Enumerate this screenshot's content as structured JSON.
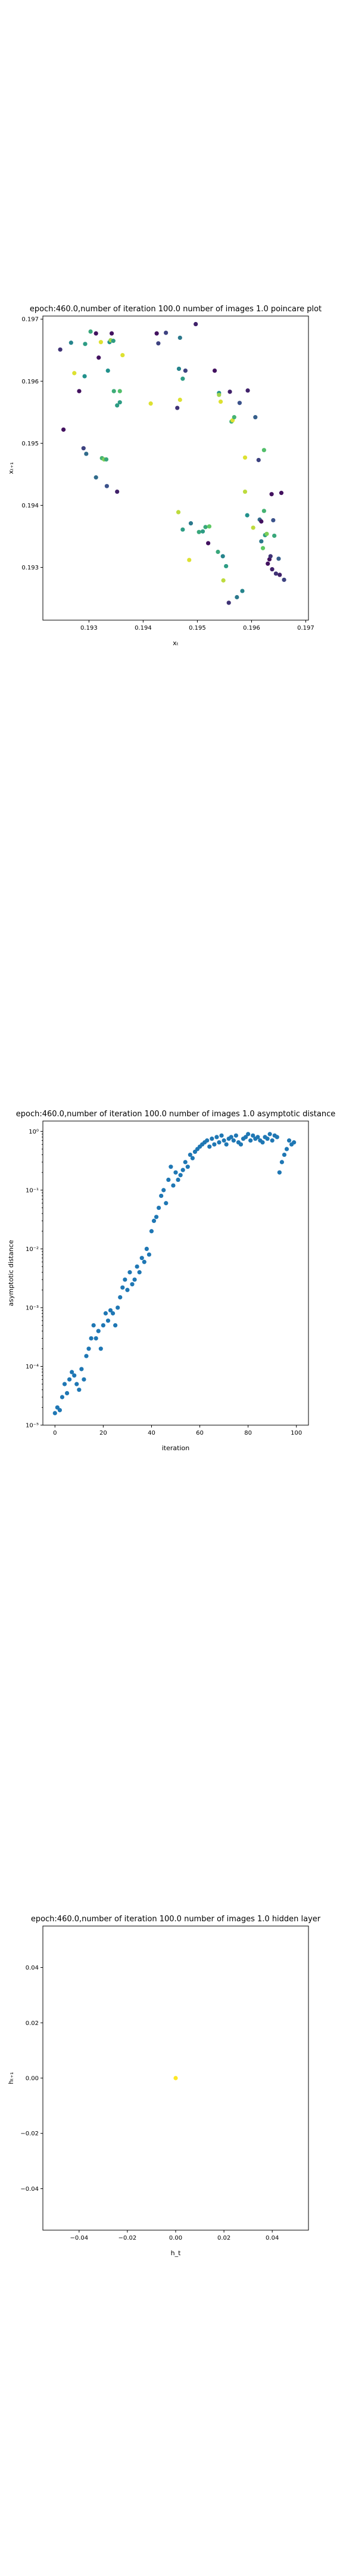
{
  "charts": [
    {
      "title": "epoch:460.0,number of iteration 100.0 number of images 1.0 poincare plot",
      "xlabel": "xₜ",
      "ylabel": "xₜ₊₁",
      "chart_data": {
        "type": "scatter",
        "title": "epoch:460.0,number of iteration 100.0 number of images 1.0 poincare plot",
        "xlabel": "xₜ",
        "ylabel": "xₜ₊₁",
        "xlim": [
          0.19215,
          0.19705
        ],
        "ylim": [
          0.19215,
          0.19705
        ],
        "xticks": [
          0.193,
          0.194,
          0.195,
          0.196,
          0.197
        ],
        "yticks": [
          0.193,
          0.194,
          0.195,
          0.196,
          0.197
        ],
        "xtick_labels": [
          "0.193",
          "0.194",
          "0.195",
          "0.196",
          "0.197"
        ],
        "ytick_labels": [
          "0.193",
          "0.194",
          "0.195",
          "0.196",
          "0.197"
        ],
        "xscale": "linear",
        "yscale": "linear",
        "grid": false,
        "colormap": "viridis",
        "points": [
          {
            "x": 0.19247,
            "y": 0.19651,
            "c": 0.15
          },
          {
            "x": 0.19253,
            "y": 0.19522,
            "c": 0.05
          },
          {
            "x": 0.19267,
            "y": 0.19662,
            "c": 0.45
          },
          {
            "x": 0.19273,
            "y": 0.19613,
            "c": 0.95
          },
          {
            "x": 0.19282,
            "y": 0.19584,
            "c": 0.05
          },
          {
            "x": 0.1929,
            "y": 0.19492,
            "c": 0.2
          },
          {
            "x": 0.19292,
            "y": 0.19608,
            "c": 0.5
          },
          {
            "x": 0.19293,
            "y": 0.1966,
            "c": 0.55
          },
          {
            "x": 0.19295,
            "y": 0.19483,
            "c": 0.35
          },
          {
            "x": 0.19303,
            "y": 0.1968,
            "c": 0.6
          },
          {
            "x": 0.19313,
            "y": 0.19677,
            "c": 0.05
          },
          {
            "x": 0.19313,
            "y": 0.19445,
            "c": 0.35
          },
          {
            "x": 0.19318,
            "y": 0.19638,
            "c": 0.05
          },
          {
            "x": 0.19322,
            "y": 0.19663,
            "c": 0.95
          },
          {
            "x": 0.19324,
            "y": 0.19476,
            "c": 0.65
          },
          {
            "x": 0.19328,
            "y": 0.19474,
            "c": 0.8
          },
          {
            "x": 0.19332,
            "y": 0.19474,
            "c": 0.6
          },
          {
            "x": 0.19333,
            "y": 0.19431,
            "c": 0.25
          },
          {
            "x": 0.19335,
            "y": 0.19617,
            "c": 0.5
          },
          {
            "x": 0.19338,
            "y": 0.19663,
            "c": 0.5
          },
          {
            "x": 0.1934,
            "y": 0.19666,
            "c": 0.85
          },
          {
            "x": 0.19342,
            "y": 0.19677,
            "c": 0.05
          },
          {
            "x": 0.19345,
            "y": 0.19665,
            "c": 0.55
          },
          {
            "x": 0.19346,
            "y": 0.19584,
            "c": 0.62
          },
          {
            "x": 0.19352,
            "y": 0.19561,
            "c": 0.55
          },
          {
            "x": 0.19352,
            "y": 0.19422,
            "c": 0.1
          },
          {
            "x": 0.19357,
            "y": 0.19584,
            "c": 0.7
          },
          {
            "x": 0.19357,
            "y": 0.19566,
            "c": 0.55
          },
          {
            "x": 0.19362,
            "y": 0.19642,
            "c": 0.95
          },
          {
            "x": 0.19414,
            "y": 0.19564,
            "c": 0.95
          },
          {
            "x": 0.19425,
            "y": 0.19677,
            "c": 0.05
          },
          {
            "x": 0.19428,
            "y": 0.19661,
            "c": 0.2
          },
          {
            "x": 0.19442,
            "y": 0.19678,
            "c": 0.2
          },
          {
            "x": 0.19463,
            "y": 0.19557,
            "c": 0.15
          },
          {
            "x": 0.19465,
            "y": 0.19389,
            "c": 0.9
          },
          {
            "x": 0.19466,
            "y": 0.1962,
            "c": 0.45
          },
          {
            "x": 0.19468,
            "y": 0.1967,
            "c": 0.4
          },
          {
            "x": 0.19468,
            "y": 0.1957,
            "c": 0.95
          },
          {
            "x": 0.19473,
            "y": 0.19604,
            "c": 0.55
          },
          {
            "x": 0.19473,
            "y": 0.19361,
            "c": 0.55
          },
          {
            "x": 0.19478,
            "y": 0.19617,
            "c": 0.2
          },
          {
            "x": 0.19485,
            "y": 0.19312,
            "c": 0.95
          },
          {
            "x": 0.19488,
            "y": 0.19371,
            "c": 0.4
          },
          {
            "x": 0.19497,
            "y": 0.19692,
            "c": 0.1
          },
          {
            "x": 0.19503,
            "y": 0.19357,
            "c": 0.6
          },
          {
            "x": 0.1951,
            "y": 0.19358,
            "c": 0.55
          },
          {
            "x": 0.19515,
            "y": 0.19365,
            "c": 0.6
          },
          {
            "x": 0.1952,
            "y": 0.19339,
            "c": 0.05
          },
          {
            "x": 0.19522,
            "y": 0.19366,
            "c": 0.75
          },
          {
            "x": 0.19532,
            "y": 0.19617,
            "c": 0.05
          },
          {
            "x": 0.19538,
            "y": 0.19325,
            "c": 0.6
          },
          {
            "x": 0.1954,
            "y": 0.19581,
            "c": 0.5
          },
          {
            "x": 0.1954,
            "y": 0.19578,
            "c": 0.85
          },
          {
            "x": 0.19543,
            "y": 0.19567,
            "c": 0.95
          },
          {
            "x": 0.19547,
            "y": 0.19318,
            "c": 0.45
          },
          {
            "x": 0.19548,
            "y": 0.19279,
            "c": 0.9
          },
          {
            "x": 0.19553,
            "y": 0.19302,
            "c": 0.55
          },
          {
            "x": 0.19558,
            "y": 0.19243,
            "c": 0.15
          },
          {
            "x": 0.1956,
            "y": 0.19583,
            "c": 0.1
          },
          {
            "x": 0.19563,
            "y": 0.19535,
            "c": 0.65
          },
          {
            "x": 0.19565,
            "y": 0.19537,
            "c": 0.95
          },
          {
            "x": 0.19568,
            "y": 0.19542,
            "c": 0.65
          },
          {
            "x": 0.19573,
            "y": 0.19252,
            "c": 0.4
          },
          {
            "x": 0.19578,
            "y": 0.19565,
            "c": 0.25
          },
          {
            "x": 0.19583,
            "y": 0.19262,
            "c": 0.45
          },
          {
            "x": 0.19588,
            "y": 0.19477,
            "c": 0.95
          },
          {
            "x": 0.19588,
            "y": 0.19422,
            "c": 0.9
          },
          {
            "x": 0.19592,
            "y": 0.19384,
            "c": 0.5
          },
          {
            "x": 0.19593,
            "y": 0.19585,
            "c": 0.1
          },
          {
            "x": 0.19603,
            "y": 0.19364,
            "c": 0.9
          },
          {
            "x": 0.19607,
            "y": 0.19542,
            "c": 0.3
          },
          {
            "x": 0.19613,
            "y": 0.19473,
            "c": 0.2
          },
          {
            "x": 0.19615,
            "y": 0.19377,
            "c": 0.35
          },
          {
            "x": 0.19618,
            "y": 0.19342,
            "c": 0.4
          },
          {
            "x": 0.19618,
            "y": 0.19374,
            "c": 0.05
          },
          {
            "x": 0.19621,
            "y": 0.19331,
            "c": 0.75
          },
          {
            "x": 0.19623,
            "y": 0.19489,
            "c": 0.7
          },
          {
            "x": 0.19623,
            "y": 0.19391,
            "c": 0.65
          },
          {
            "x": 0.19625,
            "y": 0.19352,
            "c": 0.55
          },
          {
            "x": 0.19628,
            "y": 0.19354,
            "c": 0.8
          },
          {
            "x": 0.1963,
            "y": 0.19306,
            "c": 0.05
          },
          {
            "x": 0.19633,
            "y": 0.19313,
            "c": 0.05
          },
          {
            "x": 0.19635,
            "y": 0.19318,
            "c": 0.15
          },
          {
            "x": 0.19637,
            "y": 0.19418,
            "c": 0.05
          },
          {
            "x": 0.19638,
            "y": 0.19297,
            "c": 0.1
          },
          {
            "x": 0.1964,
            "y": 0.19376,
            "c": 0.25
          },
          {
            "x": 0.19642,
            "y": 0.19351,
            "c": 0.6
          },
          {
            "x": 0.19645,
            "y": 0.1929,
            "c": 0.15
          },
          {
            "x": 0.1965,
            "y": 0.19314,
            "c": 0.3
          },
          {
            "x": 0.19652,
            "y": 0.19288,
            "c": 0.1
          },
          {
            "x": 0.19655,
            "y": 0.1942,
            "c": 0.05
          },
          {
            "x": 0.1966,
            "y": 0.1928,
            "c": 0.2
          }
        ]
      }
    },
    {
      "title": "epoch:460.0,number of iteration 100.0  number of images 1.0 asymptotic distance",
      "xlabel": "iteration",
      "ylabel": "asymptotic distance",
      "chart_data": {
        "type": "scatter",
        "title": "epoch:460.0,number of iteration 100.0  number of images 1.0 asymptotic distance",
        "xlabel": "iteration",
        "ylabel": "asymptotic distance",
        "xlim": [
          -5,
          105
        ],
        "ylim": [
          1e-05,
          1.5
        ],
        "xscale": "linear",
        "yscale": "log",
        "xticks": [
          0,
          20,
          40,
          60,
          80,
          100
        ],
        "xtick_labels": [
          "0",
          "20",
          "40",
          "60",
          "80",
          "100"
        ],
        "yticks": [
          1e-05,
          0.0001,
          0.001,
          0.01,
          0.1,
          1
        ],
        "ytick_labels": [
          "10⁻⁵",
          "10⁻⁴",
          "10⁻³",
          "10⁻²",
          "10⁻¹",
          "10⁰"
        ],
        "grid": false,
        "series": [
          {
            "marker_color": "#1f77b4",
            "x": [
              0,
              1,
              2,
              3,
              4,
              5,
              6,
              7,
              8,
              9,
              10,
              11,
              12,
              13,
              14,
              15,
              16,
              17,
              18,
              19,
              20,
              21,
              22,
              23,
              24,
              25,
              26,
              27,
              28,
              29,
              30,
              31,
              32,
              33,
              34,
              35,
              36,
              37,
              38,
              39,
              40,
              41,
              42,
              43,
              44,
              45,
              46,
              47,
              48,
              49,
              50,
              51,
              52,
              53,
              54,
              55,
              56,
              57,
              58,
              59,
              60,
              61,
              62,
              63,
              64,
              65,
              66,
              67,
              68,
              69,
              70,
              71,
              72,
              73,
              74,
              75,
              76,
              77,
              78,
              79,
              80,
              81,
              82,
              83,
              84,
              85,
              86,
              87,
              88,
              89,
              90,
              91,
              92,
              93,
              94,
              95,
              96,
              97,
              98,
              99
            ],
            "y": [
              1.6e-05,
              2e-05,
              1.8e-05,
              3e-05,
              5e-05,
              3.5e-05,
              6e-05,
              8e-05,
              7e-05,
              5e-05,
              4e-05,
              9e-05,
              6e-05,
              0.00015,
              0.0002,
              0.0003,
              0.0005,
              0.0003,
              0.0004,
              0.0002,
              0.0005,
              0.0008,
              0.0006,
              0.0009,
              0.0008,
              0.0005,
              0.001,
              0.0015,
              0.0022,
              0.003,
              0.002,
              0.004,
              0.0025,
              0.003,
              0.005,
              0.004,
              0.007,
              0.006,
              0.01,
              0.008,
              0.02,
              0.03,
              0.035,
              0.05,
              0.08,
              0.1,
              0.06,
              0.15,
              0.25,
              0.12,
              0.2,
              0.15,
              0.18,
              0.22,
              0.3,
              0.25,
              0.4,
              0.35,
              0.45,
              0.5,
              0.55,
              0.6,
              0.65,
              0.7,
              0.55,
              0.75,
              0.6,
              0.8,
              0.65,
              0.85,
              0.7,
              0.6,
              0.75,
              0.8,
              0.7,
              0.85,
              0.65,
              0.6,
              0.75,
              0.8,
              0.9,
              0.7,
              0.85,
              0.75,
              0.8,
              0.7,
              0.65,
              0.8,
              0.75,
              0.9,
              0.7,
              0.85,
              0.8,
              0.2,
              0.3,
              0.4,
              0.5,
              0.7,
              0.6,
              0.65
            ]
          }
        ]
      }
    },
    {
      "title": "epoch:460.0,number of iteration 100.0  number of images 1.0 hidden layer",
      "xlabel": "h_t",
      "ylabel": "hₜ₊₁",
      "chart_data": {
        "type": "scatter",
        "title": "epoch:460.0,number of iteration 100.0  number of images 1.0 hidden layer",
        "xlabel": "h_t",
        "ylabel": "hₜ₊₁",
        "xlim": [
          -0.055,
          0.055
        ],
        "ylim": [
          -0.055,
          0.055
        ],
        "xticks": [
          -0.04,
          -0.02,
          0.0,
          0.02,
          0.04
        ],
        "yticks": [
          -0.04,
          -0.02,
          0.0,
          0.02,
          0.04
        ],
        "xtick_labels": [
          "−0.04",
          "−0.02",
          "0.00",
          "0.02",
          "0.04"
        ],
        "ytick_labels": [
          "−0.04",
          "−0.02",
          "0.00",
          "0.02",
          "0.04"
        ],
        "xscale": "linear",
        "yscale": "linear",
        "grid": false,
        "points": [
          {
            "x": 0.0,
            "y": 0.0,
            "color": "#fde725"
          }
        ]
      }
    }
  ]
}
